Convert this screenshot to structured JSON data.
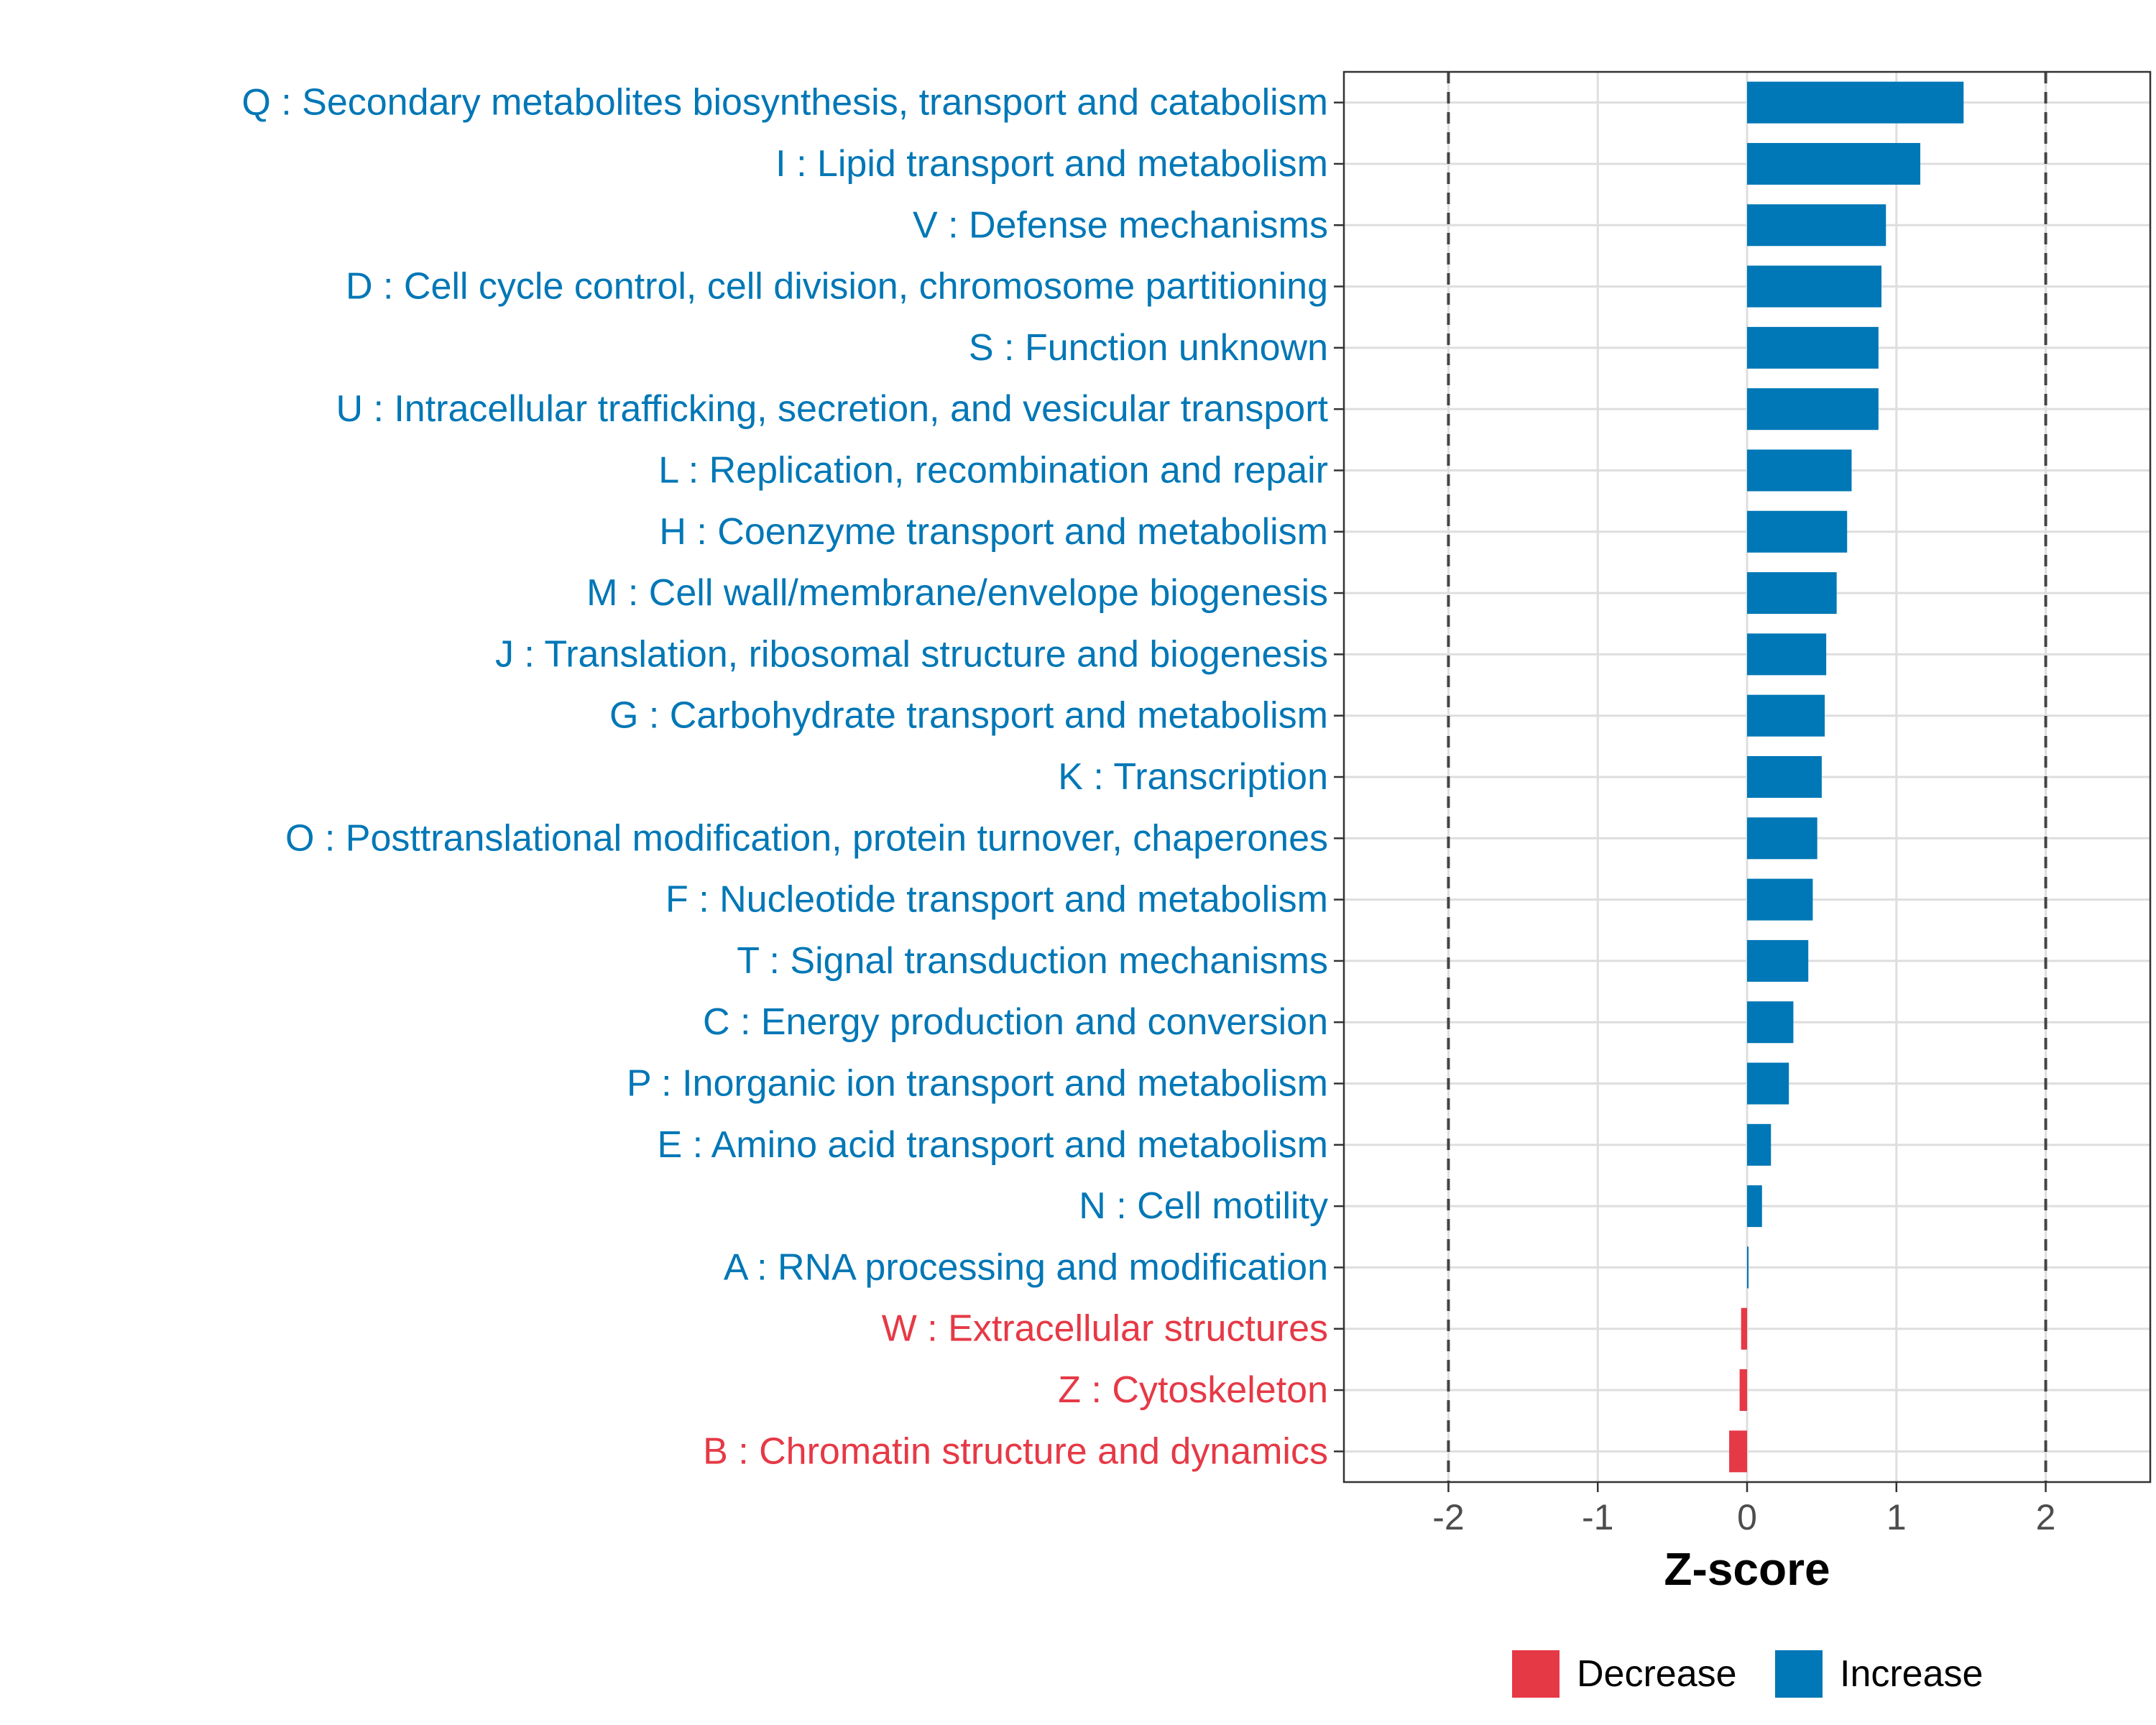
{
  "chart_data": {
    "type": "bar",
    "orientation": "horizontal",
    "title": "",
    "xlabel": "Z-score",
    "ylabel": "",
    "xlim": [
      -2.7,
      2.7
    ],
    "xticks": [
      "-2",
      "-1",
      "0",
      "1",
      "2"
    ],
    "xtick_values": [
      -2,
      -1,
      0,
      1,
      2
    ],
    "reference_lines": [
      -2,
      2
    ],
    "grid": true,
    "categories": [
      "Q : Secondary metabolites biosynthesis, transport and catabolism",
      "I : Lipid transport and metabolism",
      "V : Defense mechanisms",
      "D : Cell cycle control, cell division, chromosome partitioning",
      "S : Function unknown",
      "U : Intracellular trafficking, secretion, and vesicular transport",
      "L : Replication, recombination and repair",
      "H : Coenzyme transport and metabolism",
      "M : Cell wall/membrane/envelope biogenesis",
      "J : Translation, ribosomal structure and biogenesis",
      "G : Carbohydrate transport and metabolism",
      "K : Transcription",
      "O : Posttranslational modification, protein turnover, chaperones",
      "F : Nucleotide transport and metabolism",
      "T : Signal transduction mechanisms",
      "C : Energy production and conversion",
      "P : Inorganic ion transport and metabolism",
      "E : Amino acid transport and metabolism",
      "N : Cell motility",
      "A : RNA processing and modification",
      "W : Extracellular structures",
      "Z : Cytoskeleton",
      "B : Chromatin structure and dynamics"
    ],
    "values": [
      1.45,
      1.16,
      0.93,
      0.9,
      0.88,
      0.88,
      0.7,
      0.67,
      0.6,
      0.53,
      0.52,
      0.5,
      0.47,
      0.44,
      0.41,
      0.31,
      0.28,
      0.16,
      0.1,
      0.01,
      -0.04,
      -0.05,
      -0.12
    ],
    "groups": [
      "Increase",
      "Increase",
      "Increase",
      "Increase",
      "Increase",
      "Increase",
      "Increase",
      "Increase",
      "Increase",
      "Increase",
      "Increase",
      "Increase",
      "Increase",
      "Increase",
      "Increase",
      "Increase",
      "Increase",
      "Increase",
      "Increase",
      "Increase",
      "Decrease",
      "Decrease",
      "Decrease"
    ],
    "legend": {
      "placement": "bottom",
      "entries": [
        {
          "label": "Decrease",
          "color": "#e63946"
        },
        {
          "label": "Increase",
          "color": "#0077b6"
        }
      ]
    },
    "colors": {
      "Increase": "#0077b6",
      "Decrease": "#e63946"
    }
  }
}
